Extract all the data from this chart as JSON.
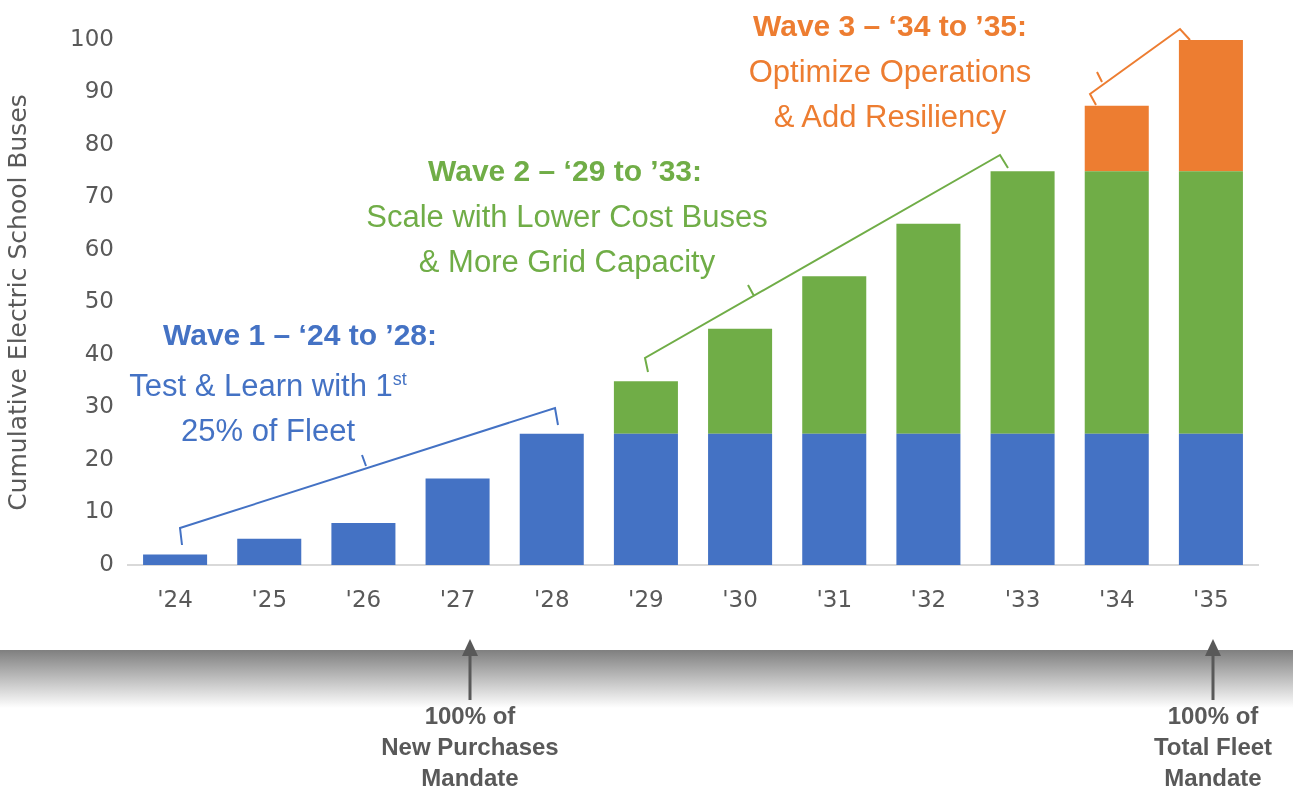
{
  "chart_data": {
    "type": "bar",
    "stacked": true,
    "ylabel": "Cumulative Electric School Buses",
    "categories": [
      "'24",
      "'25",
      "'26",
      "'27",
      "'28",
      "'29",
      "'30",
      "'31",
      "'32",
      "'33",
      "'34",
      "'35"
    ],
    "series": [
      {
        "color": "#4472c4",
        "values": [
          2,
          5,
          8,
          16.5,
          25,
          25,
          25,
          25,
          25,
          25,
          25,
          25
        ]
      },
      {
        "color": "#70ad47",
        "values": [
          0,
          0,
          0,
          0,
          0,
          10,
          20,
          30,
          40,
          50,
          50,
          50
        ]
      },
      {
        "color": "#ed7d31",
        "values": [
          0,
          0,
          0,
          0,
          0,
          0,
          0,
          0,
          0,
          0,
          12.5,
          25
        ]
      }
    ],
    "ylim": [
      0,
      100
    ],
    "yticks": [
      0,
      10,
      20,
      30,
      40,
      50,
      60,
      70,
      80,
      90,
      100
    ],
    "grid": false,
    "annotations": [
      "Wave 1 – ‘24 to ’28:",
      "Test & Learn with 1$^{st}$\n25% of Fleet",
      "Wave 2 – ‘29 to ’33:",
      "Scale with Lower Cost Buses\n& More Grid Capacity",
      "Wave 3 – ‘34 to ’35:",
      "Optimize Operations\n& Add Resiliency",
      "100% of\nNew Purchases\nMandate",
      "100% of\nTotal Fleet\nMandate"
    ]
  }
}
